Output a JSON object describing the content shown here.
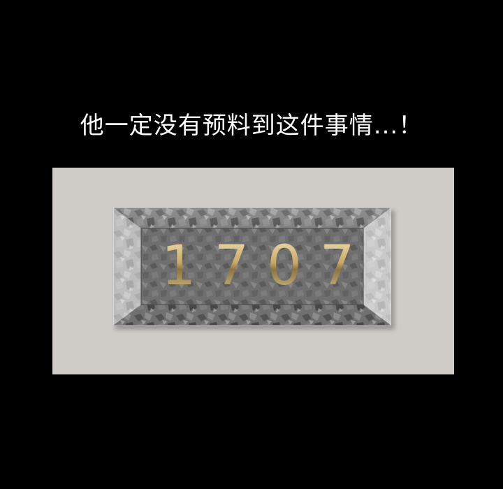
{
  "caption": "他一定没有预料到这件事情...！",
  "plaque": {
    "number": "1707"
  },
  "colors": {
    "background": "#000000",
    "panel": "#cfccc8",
    "plaque_stone": "#7a7a7a",
    "number_gold": "#d9c48f"
  }
}
